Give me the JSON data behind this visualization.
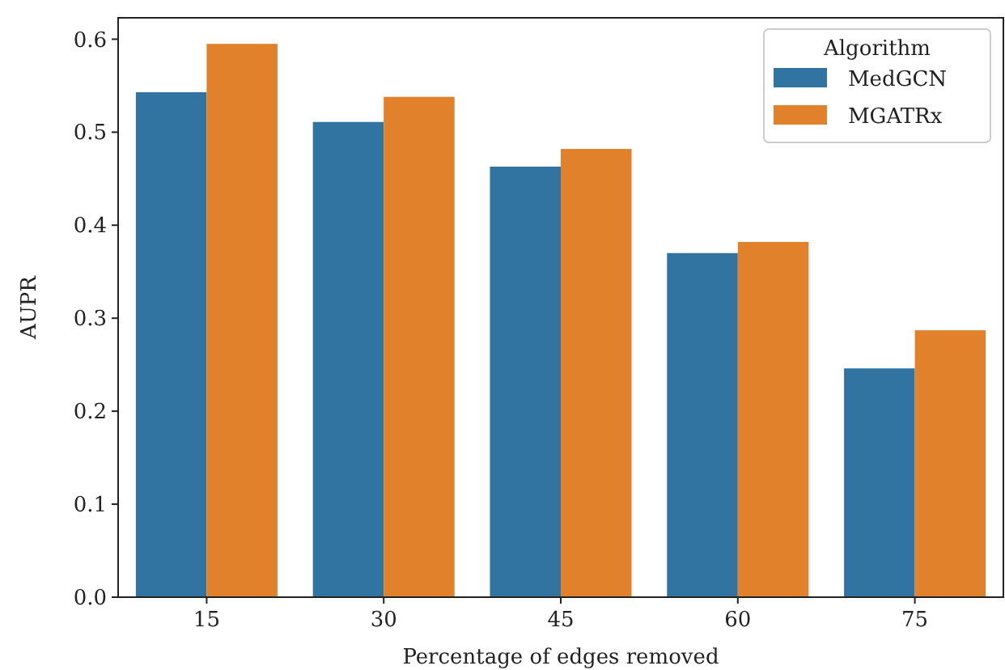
{
  "chart_data": {
    "type": "bar",
    "xlabel": "Percentage of edges removed",
    "ylabel": "AUPR",
    "legend_title": "Algorithm",
    "categories": [
      "15",
      "30",
      "45",
      "60",
      "75"
    ],
    "series": [
      {
        "name": "MedGCN",
        "color": "#3274a1",
        "values": [
          0.543,
          0.511,
          0.463,
          0.37,
          0.246
        ]
      },
      {
        "name": "MGATRx",
        "color": "#e1812c",
        "values": [
          0.595,
          0.538,
          0.482,
          0.382,
          0.287
        ]
      }
    ],
    "ylim": [
      0,
      0.623
    ],
    "yticks": [
      {
        "value": 0,
        "label": "0.0"
      },
      0.1,
      0.2,
      0.3,
      0.4,
      0.5,
      0.6
    ],
    "grid": false,
    "legend": "top right"
  }
}
